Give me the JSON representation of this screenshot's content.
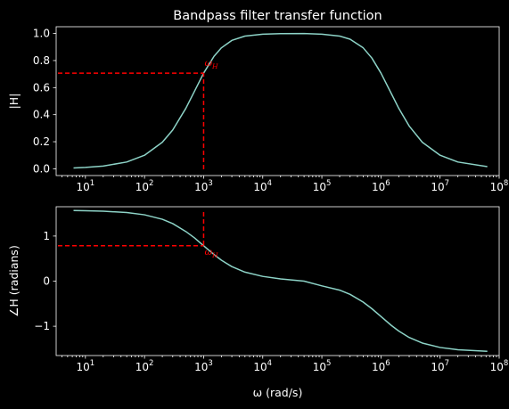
{
  "chart_data": [
    {
      "type": "line",
      "title": "Bandpass filter transfer function",
      "xlabel": "",
      "ylabel": "|H|",
      "xscale": "log",
      "xlim": [
        3.2,
        100000000
      ],
      "ylim": [
        -0.05,
        1.05
      ],
      "x_ticks": [
        "10^1",
        "10^2",
        "10^3",
        "10^4",
        "10^5",
        "10^6",
        "10^7",
        "10^8"
      ],
      "y_ticks": [
        "0.0",
        "0.2",
        "0.4",
        "0.6",
        "0.8",
        "1.0"
      ],
      "series": [
        {
          "color": "#8dd3c7",
          "x": [
            6.3,
            10,
            20,
            50,
            100,
            200,
            300,
            500,
            700,
            1000,
            1500,
            2000,
            3000,
            5000,
            10000,
            20000,
            50000,
            100000,
            200000,
            300000,
            500000,
            700000,
            1000000,
            1500000,
            2000000,
            3000000,
            5000000,
            10000000,
            20000000,
            63000000
          ],
          "y": [
            0.006,
            0.01,
            0.02,
            0.05,
            0.1,
            0.196,
            0.287,
            0.447,
            0.573,
            0.707,
            0.832,
            0.894,
            0.949,
            0.981,
            0.995,
            0.999,
            1.0,
            0.995,
            0.981,
            0.958,
            0.894,
            0.819,
            0.707,
            0.555,
            0.447,
            0.316,
            0.196,
            0.1,
            0.05,
            0.016
          ]
        }
      ],
      "annotation": {
        "label": "ω_H",
        "x": 1000,
        "y": 0.707,
        "color": "#ff0000"
      }
    },
    {
      "type": "line",
      "title": "",
      "xlabel": "ω (rad/s)",
      "ylabel": "∠H (radians)",
      "xscale": "log",
      "xlim": [
        3.2,
        100000000
      ],
      "ylim": [
        -1.65,
        1.65
      ],
      "x_ticks": [
        "10^1",
        "10^2",
        "10^3",
        "10^4",
        "10^5",
        "10^6",
        "10^7",
        "10^8"
      ],
      "y_ticks": [
        "−1",
        "0",
        "1"
      ],
      "series": [
        {
          "color": "#8dd3c7",
          "x": [
            6.3,
            10,
            20,
            50,
            100,
            200,
            300,
            500,
            700,
            1000,
            1500,
            2000,
            3000,
            5000,
            10000,
            20000,
            50000,
            100000,
            200000,
            300000,
            500000,
            700000,
            1000000,
            1500000,
            2000000,
            3000000,
            5000000,
            10000000,
            20000000,
            63000000
          ],
          "y": [
            1.565,
            1.561,
            1.551,
            1.521,
            1.471,
            1.372,
            1.276,
            1.1,
            0.96,
            0.785,
            0.588,
            0.464,
            0.322,
            0.2,
            0.105,
            0.05,
            0.0,
            -0.105,
            -0.2,
            -0.293,
            -0.464,
            -0.61,
            -0.785,
            -0.983,
            -1.107,
            -1.249,
            -1.373,
            -1.471,
            -1.521,
            -1.555
          ]
        }
      ],
      "annotation": {
        "label": "ω_H",
        "x": 1000,
        "y": 0.785,
        "color": "#ff0000"
      }
    }
  ]
}
